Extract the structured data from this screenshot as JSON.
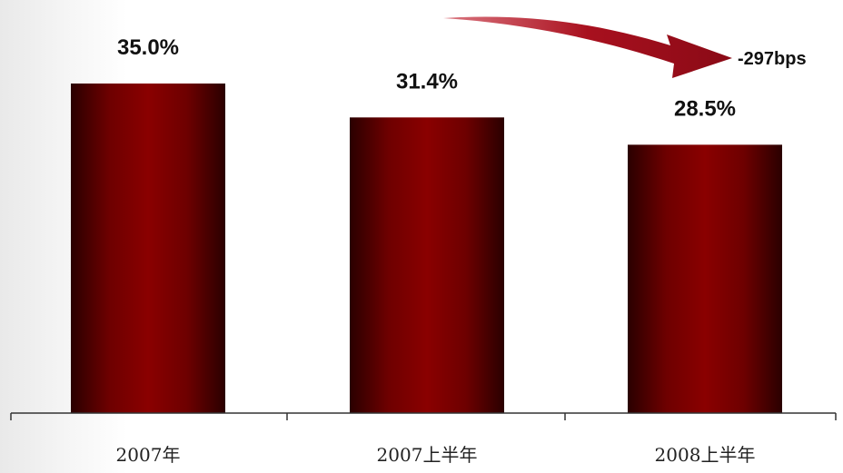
{
  "chart_data": {
    "type": "bar",
    "categories": [
      "2007年",
      "2007上半年",
      "2008上半年"
    ],
    "values": [
      35.0,
      31.4,
      28.5
    ],
    "value_labels": [
      "35.0%",
      "31.4%",
      "28.5%"
    ],
    "title": "",
    "xlabel": "",
    "ylabel": "",
    "ylim": [
      0,
      40
    ],
    "grid": false,
    "legend": "none",
    "annotation": {
      "text": "-297bps",
      "from_category": "2007上半年",
      "to_category": "2008上半年",
      "arrow": "curved-down-right"
    },
    "colors": {
      "bar_center": "#8a0000",
      "bar_edge": "#2a0000",
      "arrow": "#a8101e",
      "axis": "#333333"
    }
  }
}
